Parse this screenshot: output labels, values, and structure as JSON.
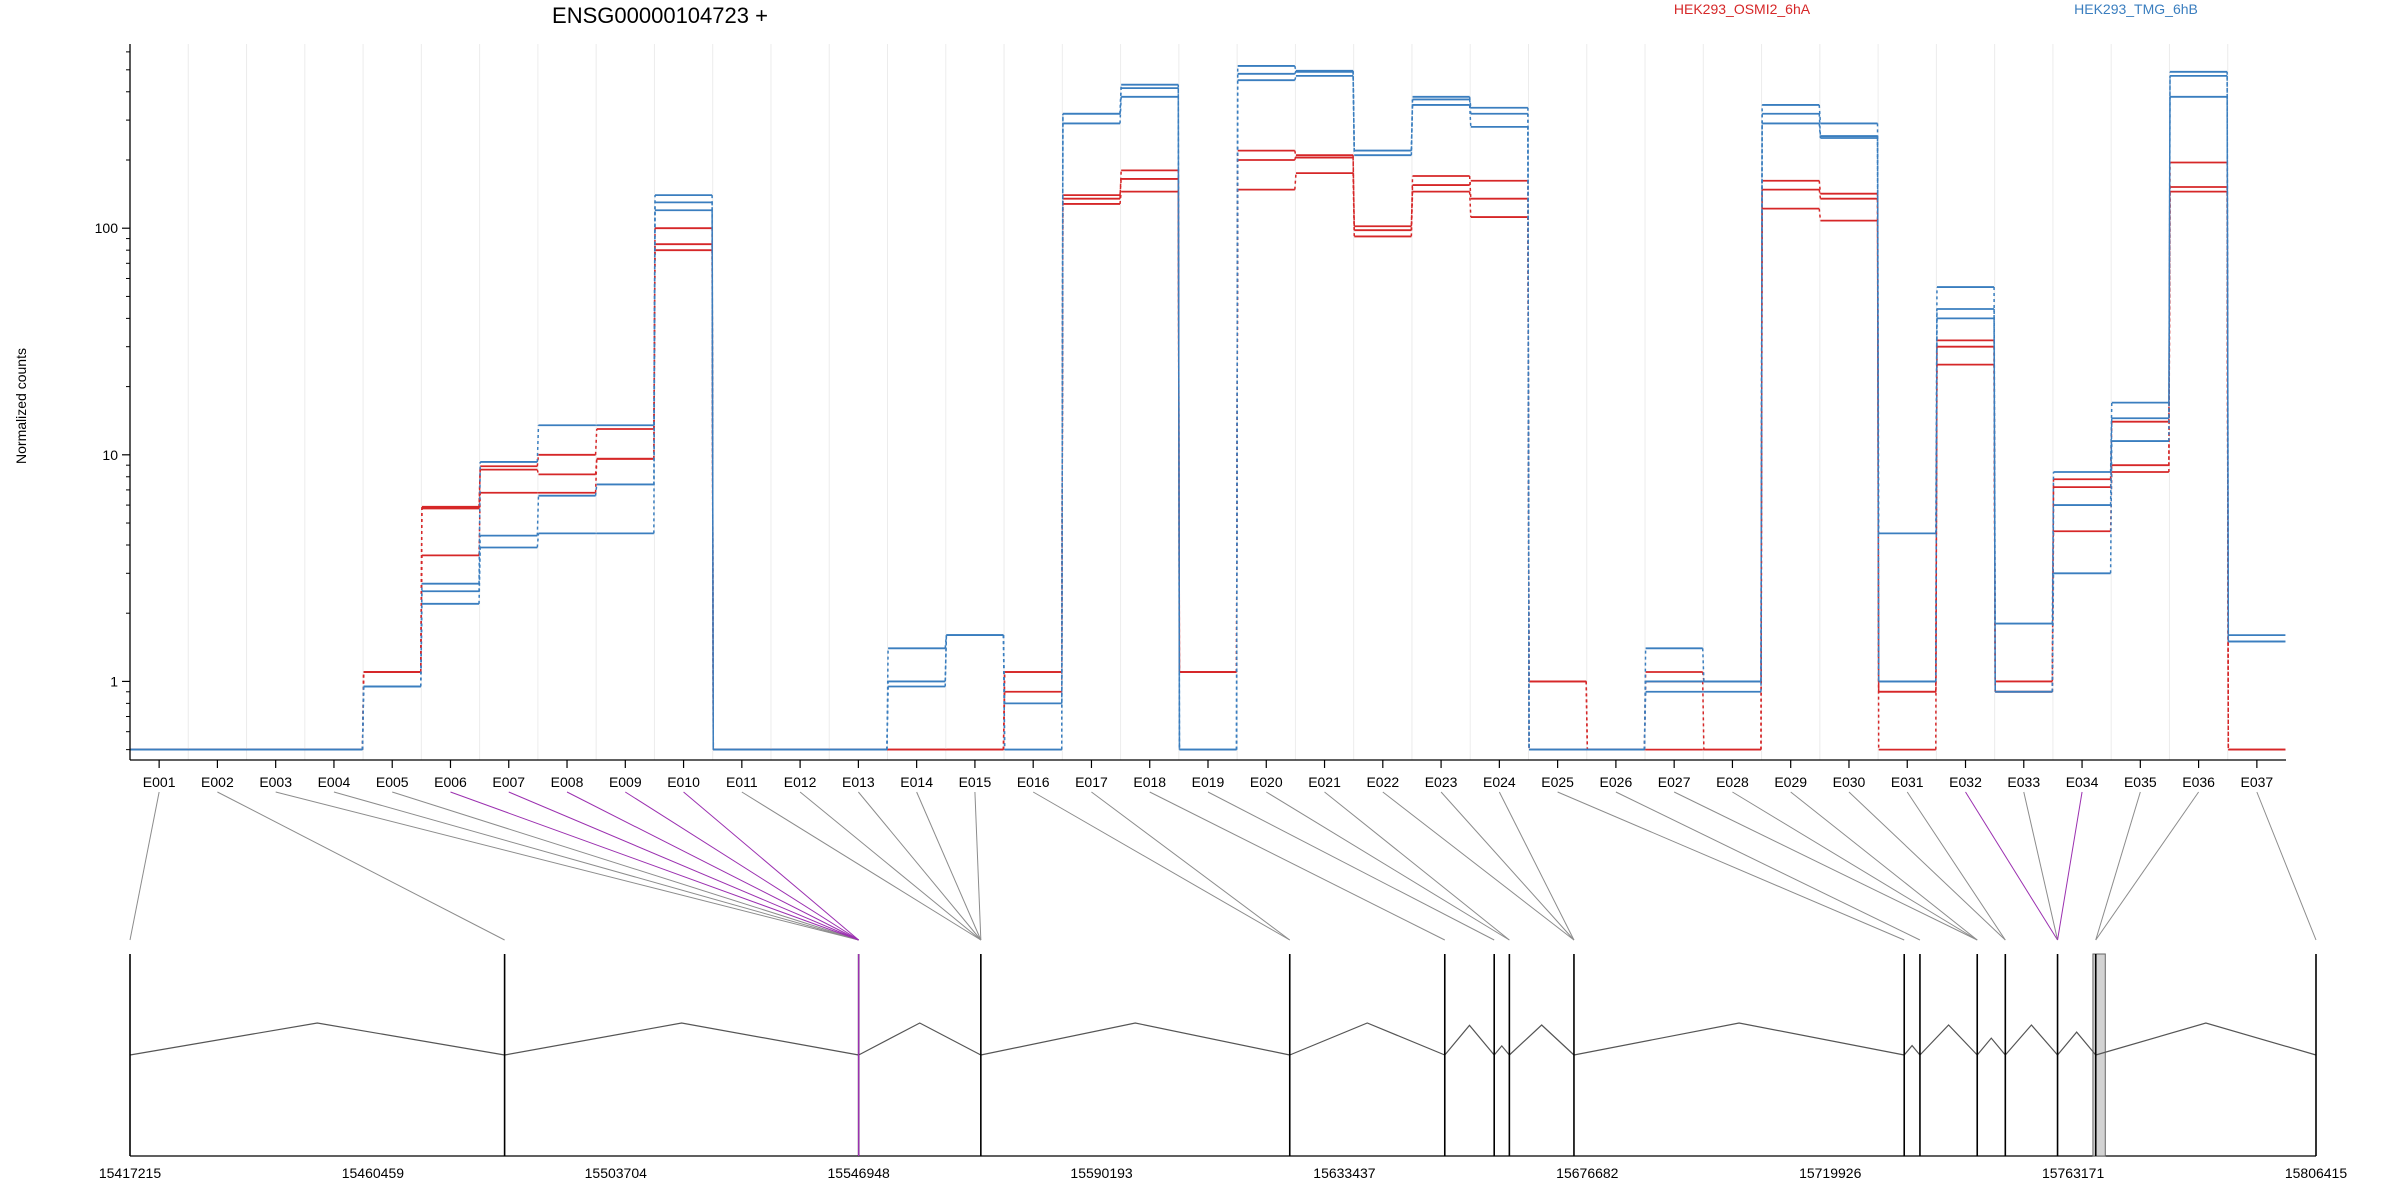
{
  "chart_data": {
    "type": "line",
    "title": "ENSG00000104723 +",
    "ylabel": "Normalized counts",
    "xlabel": "",
    "y_scale": "log",
    "ylim": [
      0.45,
      650
    ],
    "grid": "vertical-light",
    "legend_position": "top",
    "categories": [
      "E001",
      "E002",
      "E003",
      "E004",
      "E005",
      "E006",
      "E007",
      "E008",
      "E009",
      "E010",
      "E011",
      "E012",
      "E013",
      "E014",
      "E015",
      "E016",
      "E017",
      "E018",
      "E019",
      "E020",
      "E021",
      "E022",
      "E023",
      "E024",
      "E025",
      "E026",
      "E027",
      "E028",
      "E029",
      "E030",
      "E031",
      "E032",
      "E033",
      "E034",
      "E035",
      "E036",
      "E037"
    ],
    "y_ticks": [
      1,
      10,
      100
    ],
    "y_tick_labels": [
      "1",
      "10",
      "100"
    ],
    "groups": [
      {
        "name": "HEK293_OSMI2_6hA",
        "color": "#d62728"
      },
      {
        "name": "HEK293_TMG_6hB",
        "color": "#3a7ebf"
      }
    ],
    "series": [
      {
        "group": 0,
        "values": [
          0.5,
          0.5,
          0.5,
          0.5,
          1.1,
          5.8,
          8.6,
          8.2,
          9.6,
          80,
          0.5,
          0.5,
          0.5,
          0.5,
          0.5,
          0.9,
          128,
          145,
          1.1,
          148,
          175,
          92,
          145,
          112,
          0.5,
          0.5,
          0.5,
          0.5,
          122,
          108,
          0.9,
          25,
          0.9,
          4.6,
          8.4,
          145,
          0.5
        ]
      },
      {
        "group": 0,
        "values": [
          0.5,
          0.5,
          0.5,
          0.5,
          1.1,
          3.6,
          6.8,
          6.8,
          9.6,
          85,
          0.5,
          0.5,
          0.5,
          0.5,
          0.5,
          1.1,
          140,
          165,
          1.1,
          200,
          210,
          98,
          170,
          135,
          1.0,
          0.5,
          1.0,
          0.5,
          148,
          135,
          0.5,
          32,
          1.0,
          7.2,
          9.0,
          152,
          0.5
        ]
      },
      {
        "group": 0,
        "values": [
          0.5,
          0.5,
          0.5,
          0.5,
          1.1,
          5.9,
          8.9,
          10.0,
          13.0,
          100,
          0.5,
          0.5,
          0.5,
          0.5,
          0.5,
          1.1,
          135,
          180,
          1.1,
          220,
          205,
          102,
          155,
          162,
          1.0,
          0.5,
          1.1,
          1.0,
          162,
          142,
          0.9,
          30,
          0.9,
          7.8,
          14.0,
          195,
          0.5
        ]
      },
      {
        "group": 1,
        "values": [
          0.5,
          0.5,
          0.5,
          0.5,
          0.95,
          2.2,
          3.9,
          4.5,
          4.5,
          130,
          0.5,
          0.5,
          0.5,
          0.95,
          1.6,
          0.5,
          290,
          380,
          0.5,
          450,
          470,
          220,
          350,
          280,
          0.5,
          0.5,
          0.9,
          0.9,
          290,
          250,
          1.0,
          40,
          0.9,
          3.0,
          11.5,
          380,
          1.5
        ]
      },
      {
        "group": 1,
        "values": [
          0.5,
          0.5,
          0.5,
          0.5,
          0.95,
          2.5,
          4.4,
          6.6,
          7.4,
          120,
          0.5,
          0.5,
          0.5,
          1.0,
          1.6,
          0.5,
          320,
          415,
          0.5,
          480,
          495,
          210,
          370,
          320,
          0.5,
          0.5,
          1.0,
          1.0,
          320,
          255,
          1.0,
          44,
          0.9,
          6.0,
          14.5,
          470,
          1.5
        ]
      },
      {
        "group": 1,
        "values": [
          0.5,
          0.5,
          0.5,
          0.5,
          0.95,
          2.7,
          9.3,
          13.5,
          13.5,
          140,
          0.5,
          0.5,
          0.5,
          1.4,
          1.6,
          0.8,
          320,
          430,
          0.5,
          520,
          490,
          220,
          380,
          340,
          0.5,
          0.5,
          1.4,
          1.0,
          350,
          290,
          4.5,
          55,
          1.8,
          8.4,
          17.0,
          490,
          1.6
        ]
      }
    ],
    "gene_model": {
      "coordinate_labels": [
        "15417215",
        "15460459",
        "15503704",
        "15546948",
        "15590193",
        "15633437",
        "15676682",
        "15719926",
        "15763171",
        "15806415"
      ],
      "exon_bin_positions": [
        15417215,
        15483910,
        15546948,
        15546948,
        15546948,
        15546948,
        15546948,
        15546948,
        15546948,
        15546948,
        15568700,
        15568700,
        15568700,
        15568700,
        15568700,
        15623700,
        15623700,
        15651300,
        15660100,
        15662800,
        15662800,
        15674300,
        15674300,
        15674300,
        15733100,
        15735900,
        15746100,
        15746100,
        15746100,
        15751100,
        15751100,
        15760400,
        15760400,
        15760400,
        15767200,
        15767200,
        15806415
      ],
      "highlighted_bins": [
        "E006",
        "E007",
        "E008",
        "E009",
        "E010",
        "E032",
        "E034"
      ],
      "highlight_color": "#9b30b0",
      "exon_fill": "#d3d3d3"
    }
  }
}
